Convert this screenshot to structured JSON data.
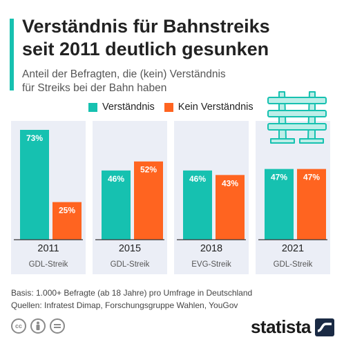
{
  "title_lines": [
    "Verständnis für Bahnstreiks",
    "seit 2011 deutlich gesunken"
  ],
  "subtitle_lines": [
    "Anteil der Befragten, die (kein) Verständnis",
    "für Streiks bei der Bahn haben"
  ],
  "footnote_lines": [
    "Basis: 1.000+ Befragte (ab 18 Jahre) pro Umfrage in Deutschland",
    "Quellen: Infratest Dimap, Forschungsgruppe Wahlen, YouGov"
  ],
  "brand": "statista",
  "license_icons": [
    "cc-icon",
    "by-icon",
    "nd-icon"
  ],
  "colors": {
    "teal": "#16c1b0",
    "orange": "#ff6420",
    "panel": "#ebeef6"
  },
  "chart_data": {
    "type": "bar",
    "categories": [
      "2011",
      "2015",
      "2018",
      "2021"
    ],
    "sublabels": [
      "GDL-Streik",
      "GDL-Streik",
      "EVG-Streik",
      "GDL-Streik"
    ],
    "series": [
      {
        "name": "Verständnis",
        "values": [
          73,
          46,
          46,
          47
        ],
        "color": "#16c1b0"
      },
      {
        "name": "Kein Verständnis",
        "values": [
          25,
          52,
          43,
          47
        ],
        "color": "#ff6420"
      }
    ],
    "value_suffix": "%",
    "ylim": [
      0,
      73
    ],
    "grid": false,
    "legend": "top"
  }
}
